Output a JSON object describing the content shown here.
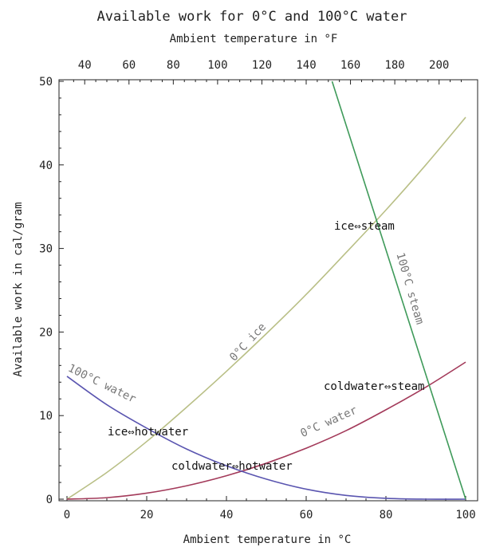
{
  "chart_data": {
    "type": "line",
    "title": "Available work for 0°C and 100°C water",
    "xlabel": "Ambient temperature in °C",
    "x2label": "Ambient temperature in °F",
    "ylabel": "Available work in cal/gram",
    "xlim": [
      0,
      100
    ],
    "ylim": [
      0,
      50
    ],
    "x2lim": [
      32,
      212
    ],
    "x_ticks": [
      0,
      20,
      40,
      60,
      80,
      100
    ],
    "y_ticks": [
      0,
      10,
      20,
      30,
      40,
      50
    ],
    "x2_ticks": [
      40,
      60,
      80,
      100,
      120,
      140,
      160,
      180,
      200
    ],
    "series": [
      {
        "name": "0°C ice",
        "color": "#b9bf86",
        "x": [
          0,
          10,
          20,
          30,
          40,
          50,
          60,
          70,
          80,
          90,
          100
        ],
        "y": [
          0,
          3.2,
          6.9,
          11.0,
          15.3,
          19.8,
          24.5,
          29.5,
          34.6,
          40.0,
          45.7
        ]
      },
      {
        "name": "0°C water",
        "color": "#a33a5a",
        "x": [
          0,
          10,
          20,
          30,
          40,
          50,
          60,
          70,
          80,
          90,
          100
        ],
        "y": [
          0,
          0.18,
          0.72,
          1.6,
          2.8,
          4.3,
          6.1,
          8.2,
          10.7,
          13.4,
          16.4
        ]
      },
      {
        "name": "100°C water",
        "color": "#5a55b0",
        "x": [
          0,
          10,
          20,
          30,
          40,
          50,
          60,
          70,
          80,
          90,
          100
        ],
        "y": [
          14.7,
          11.3,
          8.5,
          6.0,
          4.0,
          2.4,
          1.2,
          0.45,
          0.1,
          0,
          0
        ]
      },
      {
        "name": "100°C steam",
        "color": "#3f9a5a",
        "x": [
          66.5,
          100
        ],
        "y": [
          50,
          0
        ]
      }
    ],
    "curve_labels": [
      "0°C ice",
      "0°C water",
      "100°C water",
      "100°C steam"
    ],
    "annotations": [
      {
        "text": "ice⇔steam"
      },
      {
        "text": "coldwater⇔steam"
      },
      {
        "text": "ice⇔hotwater"
      },
      {
        "text": "coldwater⇔hotwater"
      }
    ],
    "grid": false,
    "legend": "none"
  }
}
